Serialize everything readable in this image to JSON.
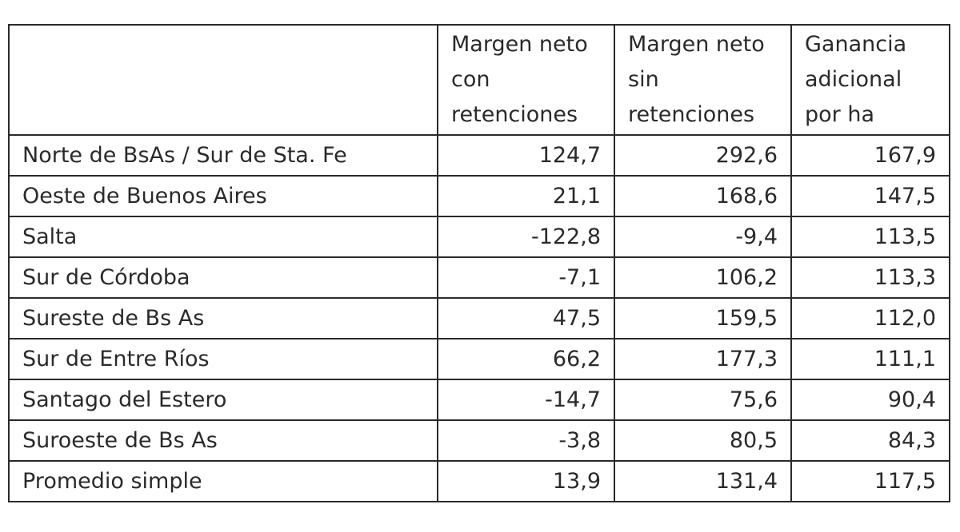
{
  "table": {
    "headers": [
      "Margen neto con retenciones",
      "Margen neto sin retenciones",
      "Ganancia adicional por ha"
    ],
    "rows": [
      [
        "Norte de BsAs / Sur de Sta. Fe",
        "124,7",
        "292,6",
        "167,9"
      ],
      [
        "Oeste de Buenos Aires",
        "21,1",
        "168,6",
        "147,5"
      ],
      [
        "Salta",
        "-122,8",
        "-9,4",
        "113,5"
      ],
      [
        "Sur de Córdoba",
        "-7,1",
        "106,2",
        "113,3"
      ],
      [
        "Sureste de Bs As",
        "47,5",
        "159,5",
        "112,0"
      ],
      [
        "Sur de Entre Ríos",
        "66,2",
        "177,3",
        "111,1"
      ],
      [
        "Santago del Estero",
        "-14,7",
        "75,6",
        "90,4"
      ],
      [
        "Suroeste de Bs As",
        "-3,8",
        "80,5",
        "84,3"
      ],
      [
        "Promedio simple",
        "13,9",
        "131,4",
        "117,5"
      ]
    ]
  }
}
